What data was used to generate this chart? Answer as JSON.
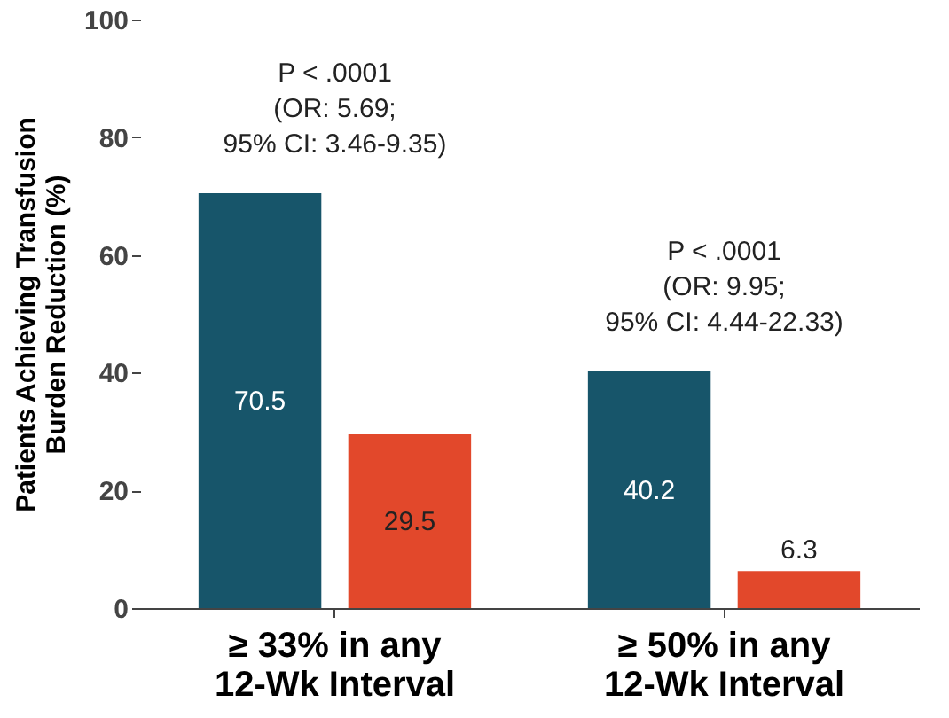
{
  "chart_data": {
    "type": "bar",
    "ylabel": "Patients Achieving Transfusion Burden Reduction (%)",
    "categories": [
      "≥ 33% in any 12-Wk Interval",
      "≥ 50% in any 12-Wk Interval"
    ],
    "series": [
      {
        "color": "#17556a",
        "values": [
          70.5,
          40.2
        ]
      },
      {
        "color": "#e2482b",
        "values": [
          29.5,
          6.3
        ]
      }
    ],
    "ylim": [
      0,
      100
    ],
    "yticks": [
      0,
      20,
      40,
      60,
      80,
      100
    ],
    "grid": false,
    "data_labels": true,
    "annotations": [
      "P < .0001\n(OR: 5.69;\n95% CI: 3.46-9.35)",
      "P < .0001\n(OR: 9.95;\n95% CI: 4.44-22.33)"
    ]
  }
}
